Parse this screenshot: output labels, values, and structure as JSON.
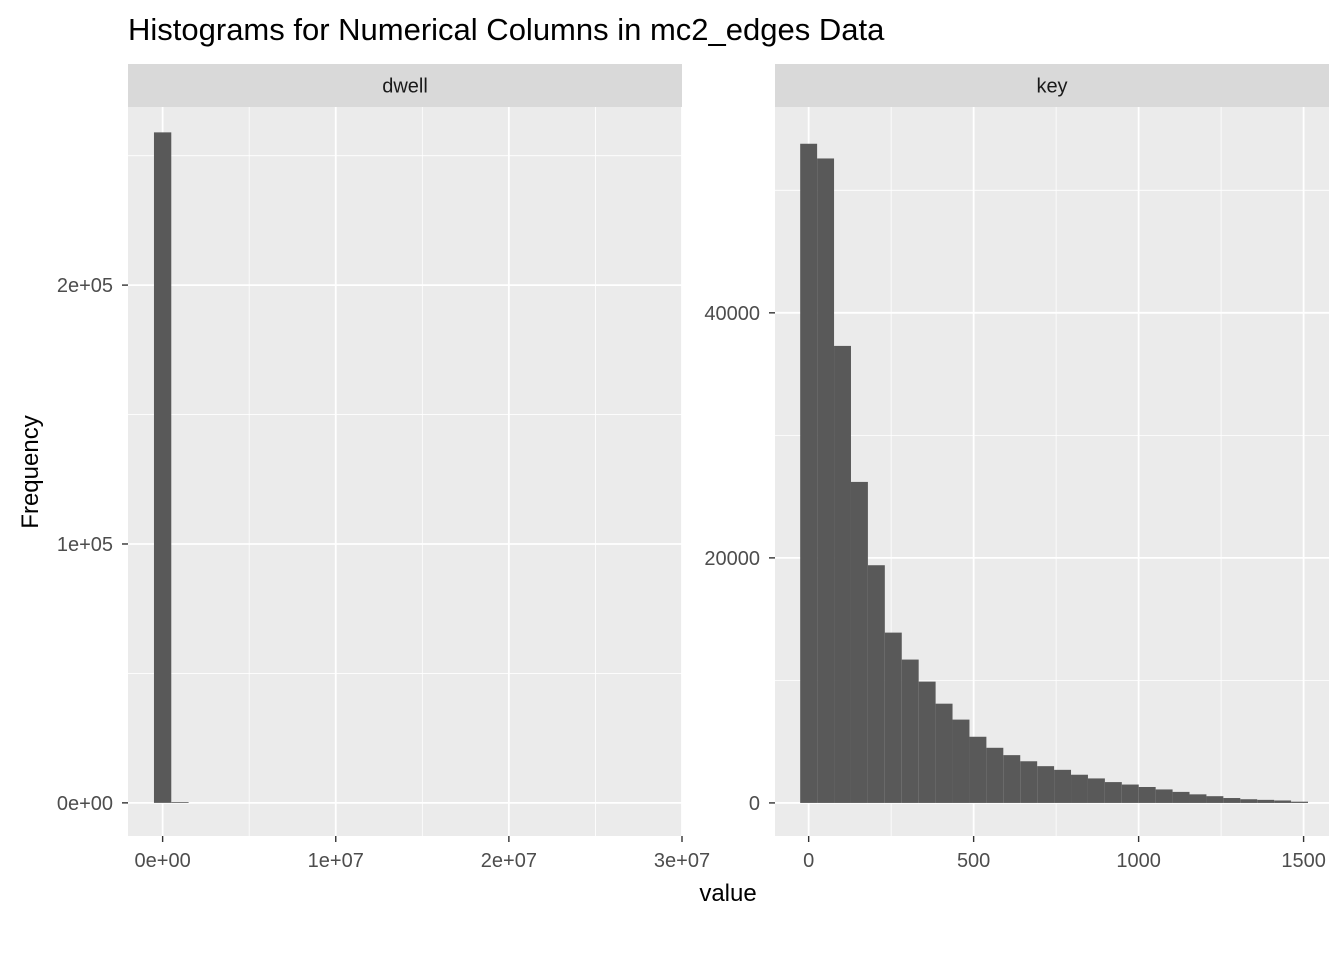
{
  "chart_data": {
    "type": "bar",
    "title": "Histograms for Numerical Columns in mc2_edges Data",
    "xlabel": "value",
    "ylabel": "Frequency",
    "colors": {
      "panel_bg": "#EBEBEB",
      "strip_bg": "#D9D9D9",
      "bar_fill": "#595959",
      "grid": "#FFFFFF",
      "tick": "#333333"
    },
    "facets": [
      {
        "strip": "dwell",
        "xlim": [
          -2000000,
          30000000
        ],
        "ylim": [
          -12800,
          268800
        ],
        "x_ticks": [
          0,
          10000000,
          20000000,
          30000000
        ],
        "x_tick_labels": [
          "0e+00",
          "1e+07",
          "2e+07",
          "3e+07"
        ],
        "y_ticks": [
          0,
          100000,
          200000
        ],
        "y_tick_labels": [
          "0e+00",
          "1e+05",
          "2e+05"
        ],
        "bin_width": 1000000,
        "bin_centers": [
          0,
          1000000
        ],
        "counts": [
          259000,
          300
        ]
      },
      {
        "strip": "key",
        "xlim": [
          -102,
          1577
        ],
        "ylim": [
          -2700,
          56800
        ],
        "x_ticks": [
          0,
          500,
          1000,
          1500
        ],
        "x_tick_labels": [
          "0",
          "500",
          "1000",
          "1500"
        ],
        "y_ticks": [
          0,
          20000,
          40000
        ],
        "y_tick_labels": [
          "0",
          "20000",
          "40000"
        ],
        "bin_width": 51.3,
        "bin_centers": [
          0,
          51.3,
          102.6,
          153.9,
          205.2,
          256.5,
          307.8,
          359.1,
          410.4,
          461.7,
          513,
          564.3,
          615.6,
          666.9,
          718.2,
          769.5,
          820.8,
          872.1,
          923.4,
          974.7,
          1026,
          1077.3,
          1128.6,
          1179.9,
          1231.2,
          1282.5,
          1333.8,
          1385.1,
          1436.4,
          1487.7
        ],
        "counts": [
          53800,
          52600,
          37300,
          26200,
          19400,
          13900,
          11700,
          9900,
          8100,
          6800,
          5400,
          4500,
          3900,
          3400,
          3000,
          2700,
          2300,
          2000,
          1700,
          1500,
          1300,
          1100,
          900,
          700,
          550,
          400,
          300,
          250,
          200,
          100
        ]
      }
    ]
  }
}
